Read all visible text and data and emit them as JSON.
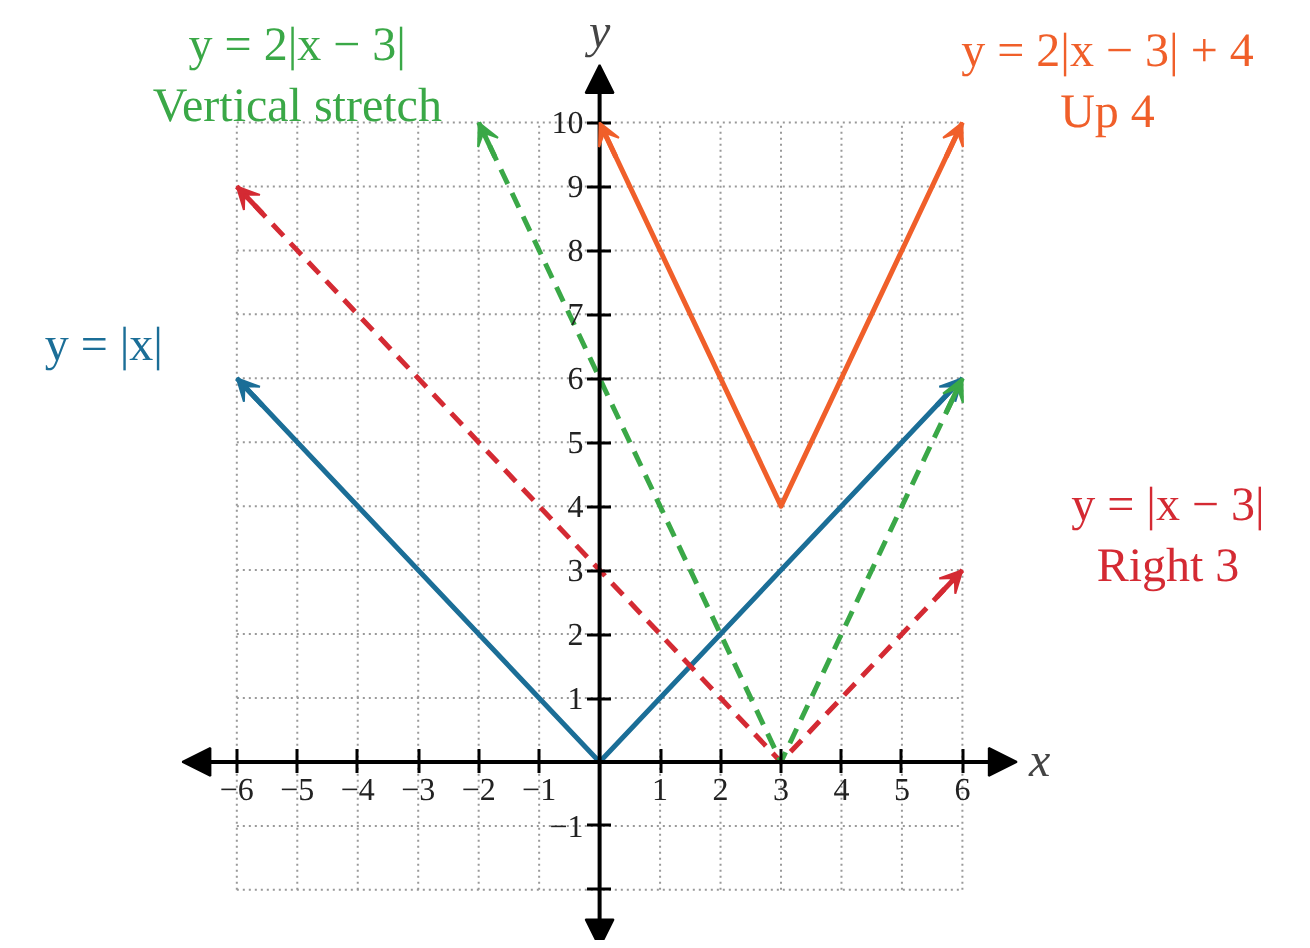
{
  "chart_data": {
    "type": "line",
    "xlabel": "x",
    "ylabel": "y",
    "xlim": [
      -6.9,
      6.9
    ],
    "ylim": [
      -2.9,
      10.9
    ],
    "xticks": [
      -6,
      -5,
      -4,
      -3,
      -2,
      -1,
      1,
      2,
      3,
      4,
      5,
      6
    ],
    "yticks": [
      {
        "value": -2,
        "label": null
      },
      -1,
      1,
      2,
      3,
      4,
      5,
      6,
      7,
      8,
      9,
      10
    ],
    "grid": true,
    "marker": "none",
    "series": [
      {
        "name": "y = |x|",
        "color": "#1b6e97",
        "x": [
          -6,
          0,
          6
        ],
        "values": [
          6,
          0,
          6
        ],
        "line_style": "solid"
      },
      {
        "name": "y = |x − 3|",
        "color": "#d42a33",
        "x": [
          -6,
          3,
          6
        ],
        "values": [
          9,
          0,
          3
        ],
        "line_style": "dashed"
      },
      {
        "name": "y = 2|x − 3|",
        "color": "#3aa847",
        "x": [
          -2,
          3,
          6
        ],
        "values": [
          10,
          0,
          6
        ],
        "line_style": "dashed"
      },
      {
        "name": "y = 2|x − 3| + 4",
        "color": "#f05f2a",
        "x": [
          0,
          3,
          6
        ],
        "values": [
          10,
          4,
          10
        ],
        "line_style": "solid"
      }
    ],
    "annotations": [
      "Right 3",
      "Vertical stretch",
      "Up 4"
    ]
  }
}
